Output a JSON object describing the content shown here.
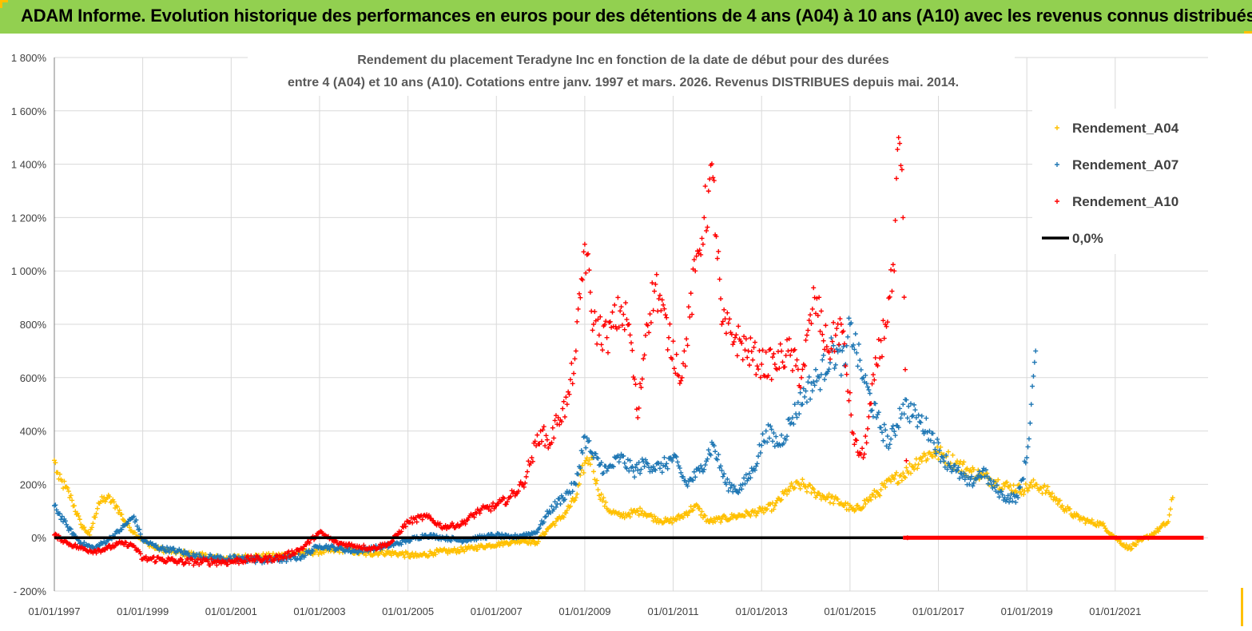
{
  "banner": {
    "title": "ADAM Informe. Evolution historique des performances en euros pour des détentions de 4 ans (A04) à 10 ans (A10) avec les revenus connus distribués"
  },
  "colors": {
    "banner_bg": "#92d050",
    "a04": "#ffc000",
    "a07": "#1f77b4",
    "a10": "#ff0000",
    "zero_line": "#000000",
    "grid": "#d9d9d9"
  },
  "chart_data": {
    "type": "scatter",
    "title_line1": "Rendement du placement Teradyne Inc en fonction de la date de début pour des durées",
    "title_line2": "entre 4 (A04) et 10 ans (A10). Cotations entre janv. 1997 et mars. 2026. Revenus DISTRIBUES depuis mai. 2014.",
    "xlabel": "",
    "ylabel": "",
    "xlim": [
      1997.0,
      2023.1
    ],
    "ylim": [
      -200,
      1800
    ],
    "y_ticks": [
      -200,
      0,
      200,
      400,
      600,
      800,
      1000,
      1200,
      1400,
      1600,
      1800
    ],
    "y_tick_labels": [
      "- 200%",
      "0%",
      "200%",
      "400%",
      "600%",
      "800%",
      "1 000%",
      "1 200%",
      "1 400%",
      "1 600%",
      "1 800%"
    ],
    "x_ticks": [
      1997,
      1999,
      2001,
      2003,
      2005,
      2007,
      2009,
      2011,
      2013,
      2015,
      2017,
      2019,
      2021
    ],
    "x_tick_labels": [
      "01/01/1997",
      "01/01/1999",
      "01/01/2001",
      "01/01/2003",
      "01/01/2005",
      "01/01/2007",
      "01/01/2009",
      "01/01/2011",
      "01/01/2013",
      "01/01/2015",
      "01/01/2017",
      "01/01/2019",
      "01/01/2021"
    ],
    "legend_position": "top-right",
    "series": [
      {
        "name": "Rendement_A04",
        "marker": "+",
        "color": "#ffc000",
        "x": [
          1997.0,
          1997.1,
          1997.25,
          1997.4,
          1997.6,
          1997.8,
          1998.0,
          1998.2,
          1998.4,
          1998.6,
          1998.8,
          1999.0,
          1999.3,
          1999.6,
          2000.0,
          2000.4,
          2000.8,
          2001.2,
          2001.6,
          2002.0,
          2002.4,
          2002.8,
          2003.2,
          2003.6,
          2004.0,
          2004.4,
          2004.8,
          2005.2,
          2005.6,
          2006.0,
          2006.4,
          2006.8,
          2007.2,
          2007.6,
          2007.9,
          2008.2,
          2008.5,
          2008.8,
          2009.0,
          2009.15,
          2009.3,
          2009.5,
          2009.8,
          2010.0,
          2010.3,
          2010.6,
          2010.9,
          2011.2,
          2011.5,
          2011.8,
          2012.1,
          2012.4,
          2012.7,
          2013.0,
          2013.3,
          2013.6,
          2013.9,
          2014.2,
          2014.5,
          2014.8,
          2015.1,
          2015.4,
          2015.7,
          2016.0,
          2016.3,
          2016.6,
          2016.9,
          2017.1,
          2017.4,
          2017.7,
          2018.0,
          2018.3,
          2018.6,
          2018.9,
          2019.2,
          2019.5,
          2019.8,
          2020.1,
          2020.4,
          2020.7,
          2021.0,
          2021.3,
          2021.6,
          2021.9,
          2022.2,
          2022.3
        ],
        "values": [
          290,
          220,
          190,
          140,
          50,
          10,
          130,
          150,
          120,
          60,
          20,
          -10,
          -40,
          -50,
          -60,
          -70,
          -80,
          -75,
          -70,
          -70,
          -60,
          -55,
          -50,
          -45,
          -60,
          -55,
          -60,
          -70,
          -55,
          -50,
          -40,
          -30,
          -20,
          -10,
          -20,
          40,
          80,
          150,
          280,
          300,
          180,
          110,
          80,
          90,
          100,
          70,
          60,
          80,
          120,
          60,
          70,
          80,
          90,
          100,
          120,
          180,
          200,
          170,
          150,
          130,
          100,
          140,
          180,
          220,
          250,
          300,
          320,
          310,
          280,
          250,
          230,
          210,
          190,
          180,
          200,
          170,
          120,
          80,
          60,
          50,
          0,
          -40,
          -10,
          20,
          60,
          150
        ]
      },
      {
        "name": "Rendement_A07",
        "marker": "+",
        "color": "#1f77b4",
        "x": [
          1997.0,
          1997.3,
          1997.6,
          1997.9,
          1998.2,
          1998.5,
          1998.8,
          1999.0,
          1999.4,
          1999.8,
          2000.2,
          2000.6,
          2001.0,
          2001.4,
          2001.8,
          2002.2,
          2002.6,
          2003.0,
          2003.4,
          2003.8,
          2004.2,
          2004.6,
          2005.0,
          2005.4,
          2005.8,
          2006.2,
          2006.6,
          2007.0,
          2007.3,
          2007.6,
          2007.9,
          2008.2,
          2008.5,
          2008.8,
          2009.0,
          2009.2,
          2009.5,
          2009.8,
          2010.1,
          2010.4,
          2010.7,
          2011.0,
          2011.3,
          2011.6,
          2011.9,
          2012.2,
          2012.5,
          2012.8,
          2013.1,
          2013.4,
          2013.7,
          2014.0,
          2014.3,
          2014.6,
          2014.9,
          2015.0,
          2015.3,
          2015.6,
          2015.9,
          2016.2,
          2016.5,
          2016.8,
          2017.1,
          2017.4,
          2017.7,
          2018.0,
          2018.2,
          2018.5,
          2018.8,
          2019.0,
          2019.1,
          2019.2
        ],
        "values": [
          120,
          40,
          -20,
          -40,
          -10,
          30,
          80,
          -10,
          -40,
          -50,
          -70,
          -75,
          -80,
          -80,
          -85,
          -80,
          -70,
          -30,
          -40,
          -50,
          -40,
          -30,
          -10,
          10,
          0,
          -10,
          0,
          10,
          0,
          10,
          20,
          100,
          150,
          200,
          380,
          300,
          250,
          300,
          250,
          280,
          260,
          300,
          200,
          250,
          350,
          200,
          180,
          250,
          400,
          350,
          450,
          550,
          600,
          700,
          650,
          800,
          600,
          450,
          350,
          500,
          450,
          400,
          300,
          250,
          200,
          250,
          200,
          150,
          150,
          300,
          500,
          700
        ]
      },
      {
        "name": "Rendement_A10",
        "marker": "+",
        "color": "#ff0000",
        "x": [
          1997.0,
          1997.3,
          1997.6,
          1997.9,
          1998.2,
          1998.5,
          1998.8,
          1999.0,
          1999.4,
          1999.8,
          2000.2,
          2000.6,
          2001.0,
          2001.4,
          2001.8,
          2002.2,
          2002.6,
          2003.0,
          2003.4,
          2003.8,
          2004.2,
          2004.6,
          2005.0,
          2005.4,
          2005.8,
          2006.2,
          2006.6,
          2007.0,
          2007.3,
          2007.6,
          2007.8,
          2008.0,
          2008.2,
          2008.4,
          2008.6,
          2008.8,
          2009.0,
          2009.2,
          2009.5,
          2009.8,
          2010.0,
          2010.2,
          2010.4,
          2010.6,
          2010.9,
          2011.2,
          2011.5,
          2011.7,
          2011.9,
          2012.1,
          2012.4,
          2012.7,
          2013.0,
          2013.3,
          2013.6,
          2013.9,
          2014.2,
          2014.5,
          2014.8,
          2015.1,
          2015.3,
          2015.6,
          2015.8,
          2016.0,
          2016.1,
          2016.2,
          2016.3
        ],
        "values": [
          10,
          -20,
          -40,
          -50,
          -40,
          -20,
          -30,
          -80,
          -80,
          -90,
          -90,
          -90,
          -90,
          -80,
          -80,
          -70,
          -40,
          20,
          -20,
          -30,
          -40,
          -20,
          60,
          80,
          40,
          50,
          100,
          120,
          150,
          200,
          300,
          400,
          350,
          450,
          500,
          700,
          1100,
          800,
          750,
          850,
          800,
          450,
          800,
          950,
          750,
          600,
          1000,
          1200,
          1350,
          800,
          750,
          700,
          650,
          650,
          700,
          600,
          900,
          700,
          800,
          350,
          300,
          650,
          800,
          1000,
          1500,
          1200,
          0
        ]
      },
      {
        "name": "0,0%",
        "marker": "line",
        "color": "#000000",
        "x": [
          1997.0,
          2016.2
        ],
        "values": [
          0,
          0
        ]
      }
    ],
    "a10_zero_tail": {
      "x_start": 2016.2,
      "x_end": 2023.0,
      "value": 0
    }
  }
}
